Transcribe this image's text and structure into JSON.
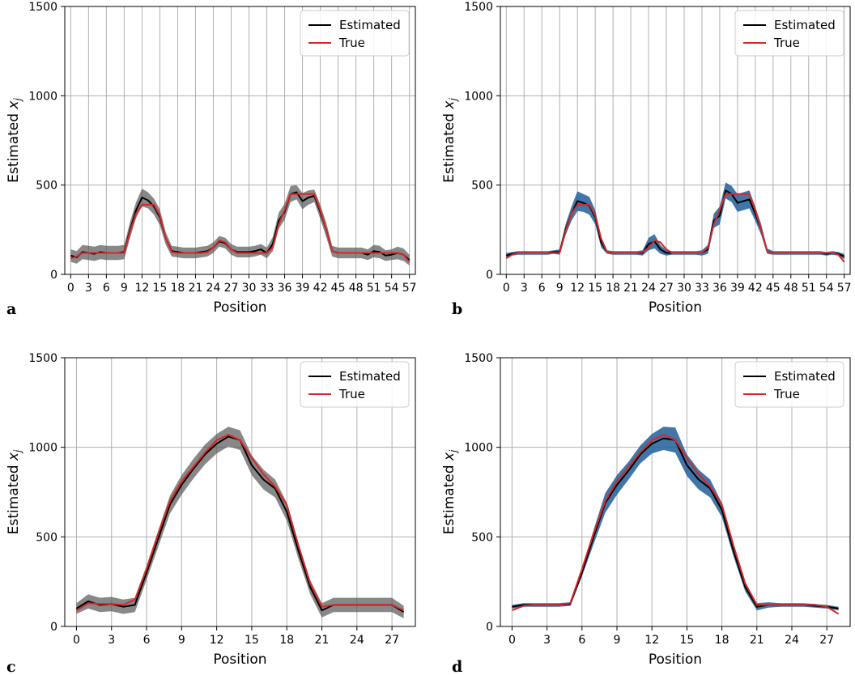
{
  "figure": {
    "ylabel": "Estimated x_j",
    "colors": {
      "estimated": "#000000",
      "true": "#d62728",
      "grid": "#b0b0b0",
      "band_gray": "#555555",
      "band_blue": "#1f5f99"
    }
  },
  "chart_data": [
    {
      "type": "line",
      "panel": "a",
      "xlabel": "Position",
      "ylabel": "Estimated x_j",
      "xlim": [
        -1,
        58
      ],
      "ylim": [
        0,
        1500
      ],
      "yticks": [
        0,
        500,
        1000,
        1500
      ],
      "xticks": [
        0,
        3,
        6,
        9,
        12,
        15,
        18,
        21,
        24,
        27,
        30,
        33,
        36,
        39,
        42,
        45,
        48,
        51,
        54,
        57
      ],
      "grid": true,
      "legend": {
        "position": "top-right",
        "entries": [
          "Estimated",
          "True"
        ]
      },
      "band_color": "#555555",
      "x": [
        0,
        1,
        2,
        3,
        4,
        5,
        6,
        7,
        8,
        9,
        10,
        11,
        12,
        13,
        14,
        15,
        16,
        17,
        18,
        19,
        20,
        21,
        22,
        23,
        24,
        25,
        26,
        27,
        28,
        29,
        30,
        31,
        32,
        33,
        34,
        35,
        36,
        37,
        38,
        39,
        40,
        41,
        42,
        43,
        44,
        45,
        46,
        47,
        48,
        49,
        50,
        51,
        52,
        53,
        54,
        55,
        56,
        57
      ],
      "series": [
        {
          "name": "Estimated",
          "values": [
            105,
            95,
            125,
            120,
            115,
            125,
            120,
            120,
            120,
            125,
            250,
            360,
            430,
            415,
            380,
            320,
            200,
            130,
            125,
            120,
            120,
            120,
            125,
            130,
            150,
            185,
            175,
            140,
            125,
            125,
            125,
            130,
            140,
            120,
            170,
            300,
            350,
            450,
            460,
            410,
            430,
            440,
            350,
            250,
            130,
            120,
            120,
            120,
            120,
            120,
            110,
            130,
            125,
            105,
            110,
            120,
            110,
            80
          ]
        },
        {
          "name": "True",
          "values": [
            90,
            100,
            120,
            120,
            120,
            120,
            120,
            120,
            120,
            120,
            240,
            340,
            390,
            390,
            390,
            330,
            200,
            125,
            120,
            120,
            120,
            120,
            120,
            125,
            150,
            190,
            180,
            140,
            120,
            120,
            120,
            120,
            120,
            120,
            150,
            280,
            360,
            450,
            450,
            450,
            450,
            450,
            360,
            250,
            130,
            120,
            120,
            120,
            120,
            120,
            120,
            120,
            120,
            120,
            120,
            120,
            110,
            70
          ]
        }
      ],
      "band_halfwidth": [
        35,
        35,
        40,
        40,
        40,
        40,
        40,
        40,
        40,
        40,
        45,
        45,
        50,
        45,
        45,
        45,
        35,
        30,
        30,
        30,
        30,
        30,
        30,
        30,
        30,
        30,
        30,
        30,
        30,
        30,
        30,
        30,
        30,
        30,
        40,
        45,
        45,
        45,
        40,
        45,
        40,
        35,
        40,
        40,
        30,
        30,
        30,
        30,
        30,
        30,
        30,
        35,
        35,
        30,
        30,
        35,
        35,
        30
      ]
    },
    {
      "type": "line",
      "panel": "b",
      "xlabel": "Position",
      "ylabel": "Estimated x_j",
      "xlim": [
        -1,
        58
      ],
      "ylim": [
        0,
        1500
      ],
      "yticks": [
        0,
        500,
        1000,
        1500
      ],
      "xticks": [
        0,
        3,
        6,
        9,
        12,
        15,
        18,
        21,
        24,
        27,
        30,
        33,
        36,
        39,
        42,
        45,
        48,
        51,
        54,
        57
      ],
      "grid": true,
      "legend": {
        "position": "top-right",
        "entries": [
          "Estimated",
          "True"
        ]
      },
      "band_color": "#1f5f99",
      "x": [
        0,
        1,
        2,
        3,
        4,
        5,
        6,
        7,
        8,
        9,
        10,
        11,
        12,
        13,
        14,
        15,
        16,
        17,
        18,
        19,
        20,
        21,
        22,
        23,
        24,
        25,
        26,
        27,
        28,
        29,
        30,
        31,
        32,
        33,
        34,
        35,
        36,
        37,
        38,
        39,
        40,
        41,
        42,
        43,
        44,
        45,
        46,
        47,
        48,
        49,
        50,
        51,
        52,
        53,
        54,
        55,
        56,
        57
      ],
      "series": [
        {
          "name": "Estimated",
          "values": [
            105,
            115,
            120,
            120,
            120,
            120,
            120,
            120,
            125,
            125,
            250,
            340,
            410,
            400,
            385,
            320,
            180,
            125,
            120,
            120,
            120,
            120,
            120,
            120,
            170,
            185,
            140,
            120,
            120,
            120,
            120,
            120,
            120,
            120,
            140,
            300,
            330,
            470,
            450,
            400,
            410,
            420,
            340,
            250,
            130,
            120,
            120,
            120,
            120,
            120,
            120,
            120,
            120,
            120,
            115,
            120,
            115,
            100
          ]
        },
        {
          "name": "True",
          "values": [
            90,
            110,
            120,
            120,
            120,
            120,
            120,
            120,
            120,
            120,
            240,
            340,
            390,
            390,
            390,
            330,
            200,
            125,
            120,
            120,
            120,
            120,
            120,
            125,
            150,
            190,
            180,
            140,
            120,
            120,
            120,
            120,
            120,
            120,
            150,
            280,
            360,
            450,
            450,
            450,
            450,
            450,
            360,
            250,
            130,
            120,
            120,
            120,
            120,
            120,
            120,
            120,
            120,
            120,
            120,
            120,
            110,
            70
          ]
        }
      ],
      "band_halfwidth": [
        15,
        10,
        10,
        10,
        10,
        10,
        10,
        10,
        10,
        15,
        30,
        40,
        55,
        50,
        50,
        40,
        30,
        10,
        10,
        10,
        10,
        10,
        10,
        15,
        35,
        40,
        25,
        15,
        10,
        10,
        10,
        10,
        10,
        15,
        25,
        40,
        50,
        45,
        45,
        50,
        50,
        50,
        40,
        30,
        15,
        10,
        10,
        10,
        10,
        10,
        10,
        10,
        10,
        10,
        10,
        10,
        10,
        15
      ]
    },
    {
      "type": "line",
      "panel": "c",
      "xlabel": "Position",
      "ylabel": "Estimated x_j",
      "xlim": [
        -1,
        29
      ],
      "ylim": [
        0,
        1500
      ],
      "yticks": [
        0,
        500,
        1000,
        1500
      ],
      "xticks": [
        0,
        3,
        6,
        9,
        12,
        15,
        18,
        21,
        24,
        27
      ],
      "grid": true,
      "legend": {
        "position": "top-right",
        "entries": [
          "Estimated",
          "True"
        ]
      },
      "band_color": "#555555",
      "x": [
        0,
        1,
        2,
        3,
        4,
        5,
        6,
        7,
        8,
        9,
        10,
        11,
        12,
        13,
        14,
        15,
        16,
        17,
        18,
        19,
        20,
        21,
        22,
        23,
        24,
        25,
        26,
        27,
        28
      ],
      "series": [
        {
          "name": "Estimated",
          "values": [
            100,
            140,
            120,
            125,
            110,
            120,
            300,
            490,
            680,
            790,
            880,
            960,
            1020,
            1060,
            1040,
            900,
            820,
            770,
            640,
            420,
            220,
            90,
            120,
            120,
            120,
            120,
            120,
            120,
            80
          ]
        },
        {
          "name": "True",
          "values": [
            90,
            130,
            125,
            125,
            120,
            150,
            320,
            520,
            700,
            810,
            890,
            970,
            1040,
            1070,
            1040,
            940,
            850,
            780,
            680,
            450,
            240,
            110,
            120,
            120,
            120,
            120,
            120,
            120,
            90
          ]
        }
      ],
      "band_halfwidth": [
        30,
        40,
        40,
        40,
        40,
        40,
        40,
        45,
        50,
        55,
        55,
        55,
        55,
        55,
        55,
        55,
        55,
        50,
        50,
        45,
        40,
        40,
        40,
        40,
        40,
        40,
        40,
        40,
        35
      ]
    },
    {
      "type": "line",
      "panel": "d",
      "xlabel": "Position",
      "ylabel": "Estimated x_j",
      "xlim": [
        -1,
        29
      ],
      "ylim": [
        0,
        1500
      ],
      "yticks": [
        0,
        500,
        1000,
        1500
      ],
      "xticks": [
        0,
        3,
        6,
        9,
        12,
        15,
        18,
        21,
        24,
        27
      ],
      "grid": true,
      "legend": {
        "position": "top-right",
        "entries": [
          "Estimated",
          "True"
        ]
      },
      "band_color": "#1f5f99",
      "x": [
        0,
        1,
        2,
        3,
        4,
        5,
        6,
        7,
        8,
        9,
        10,
        11,
        12,
        13,
        14,
        15,
        16,
        17,
        18,
        19,
        20,
        21,
        22,
        23,
        24,
        25,
        26,
        27,
        28
      ],
      "series": [
        {
          "name": "Estimated",
          "values": [
            110,
            120,
            120,
            120,
            120,
            125,
            300,
            500,
            690,
            790,
            870,
            960,
            1020,
            1050,
            1040,
            900,
            820,
            770,
            650,
            420,
            220,
            110,
            120,
            120,
            120,
            120,
            115,
            110,
            100
          ]
        },
        {
          "name": "True",
          "values": [
            90,
            115,
            120,
            120,
            120,
            130,
            320,
            520,
            700,
            810,
            890,
            970,
            1040,
            1070,
            1040,
            940,
            850,
            780,
            680,
            450,
            240,
            120,
            120,
            120,
            120,
            120,
            120,
            110,
            70
          ]
        }
      ],
      "band_halfwidth": [
        10,
        10,
        10,
        10,
        10,
        10,
        20,
        40,
        55,
        55,
        50,
        50,
        55,
        65,
        70,
        60,
        55,
        50,
        40,
        30,
        25,
        20,
        15,
        10,
        10,
        10,
        10,
        10,
        10
      ]
    }
  ]
}
